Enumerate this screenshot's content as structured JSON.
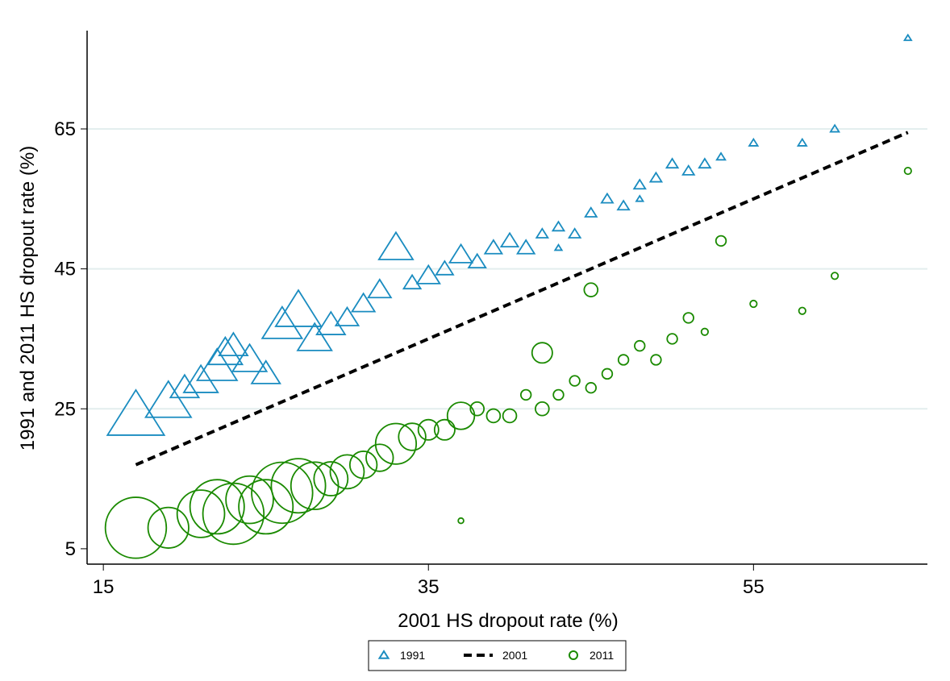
{
  "chart_data": {
    "type": "scatter",
    "x_label": "2001 HS dropout rate (%)",
    "y_label": "1991 and 2011 HS dropout rate (%)",
    "xlim": [
      14,
      65.7
    ],
    "ylim": [
      2.8,
      79.05
    ],
    "xticks": [
      15,
      35,
      55
    ],
    "yticks": [
      5,
      25,
      45,
      65
    ],
    "grid": true,
    "legend": "bottom",
    "series": [
      {
        "name": "1991",
        "type": "scatter",
        "marker": "triangle",
        "color": "#1a8cc0",
        "x": [
          17,
          19,
          20,
          21,
          22,
          22.5,
          23,
          24,
          25,
          26,
          27,
          28,
          29,
          30,
          31,
          32,
          33,
          34,
          35,
          36,
          37,
          38,
          39,
          40,
          41,
          42,
          43,
          44,
          45,
          46,
          47,
          48,
          49,
          50,
          51,
          52,
          53,
          55,
          58,
          60,
          64.5,
          43,
          48
        ],
        "values": [
          24,
          26,
          28,
          29,
          31,
          33,
          34,
          32,
          30,
          37,
          39,
          35,
          37,
          38,
          40,
          42,
          48,
          43,
          44,
          45,
          47,
          46,
          48,
          49,
          48,
          50,
          51,
          50,
          53,
          55,
          54,
          57,
          58,
          60,
          59,
          60,
          61,
          63,
          63,
          65,
          78,
          48,
          55
        ],
        "sizes": [
          10,
          8,
          5,
          6,
          7,
          6,
          5,
          6,
          5,
          7,
          8,
          6,
          5,
          4,
          4,
          4,
          6,
          3,
          4,
          3,
          4,
          3,
          3,
          3,
          3,
          2,
          2,
          2,
          2,
          2,
          2,
          2,
          2,
          2,
          2,
          2,
          1.5,
          1.5,
          1.5,
          1.5,
          1.2,
          1.2,
          1.2
        ]
      },
      {
        "name": "2001",
        "type": "line",
        "color": "#000000",
        "dash": true,
        "x": [
          17,
          64.5
        ],
        "values": [
          17,
          64.5
        ]
      },
      {
        "name": "2011",
        "type": "scatter",
        "marker": "circle",
        "color": "#1a8a00",
        "x": [
          17,
          19,
          21,
          22,
          23,
          24,
          25,
          26,
          27,
          28,
          29,
          30,
          31,
          32,
          33,
          34,
          35,
          36,
          37,
          38,
          39,
          40,
          41,
          42,
          43,
          44,
          45,
          46,
          47,
          48,
          49,
          50,
          51,
          52,
          53,
          55,
          58,
          60,
          64.5,
          37,
          45,
          42
        ],
        "values": [
          8,
          8,
          10,
          11,
          10,
          12,
          11,
          13,
          14,
          14,
          15,
          16,
          17,
          18,
          20,
          21,
          22,
          22,
          24,
          25,
          24,
          24,
          27,
          25,
          27,
          29,
          28,
          30,
          32,
          34,
          32,
          35,
          38,
          36,
          49,
          40,
          39,
          44,
          59,
          9,
          42,
          33
        ],
        "sizes": [
          9,
          6,
          7,
          8,
          9,
          7,
          8,
          9,
          8,
          7,
          5,
          5,
          4,
          4,
          6,
          4,
          3,
          3,
          4,
          2,
          2,
          2,
          1.5,
          2,
          1.5,
          1.5,
          1.5,
          1.5,
          1.5,
          1.5,
          1.5,
          1.5,
          1.5,
          1,
          1.5,
          1,
          1,
          1,
          1,
          0.8,
          2,
          3
        ]
      }
    ]
  }
}
